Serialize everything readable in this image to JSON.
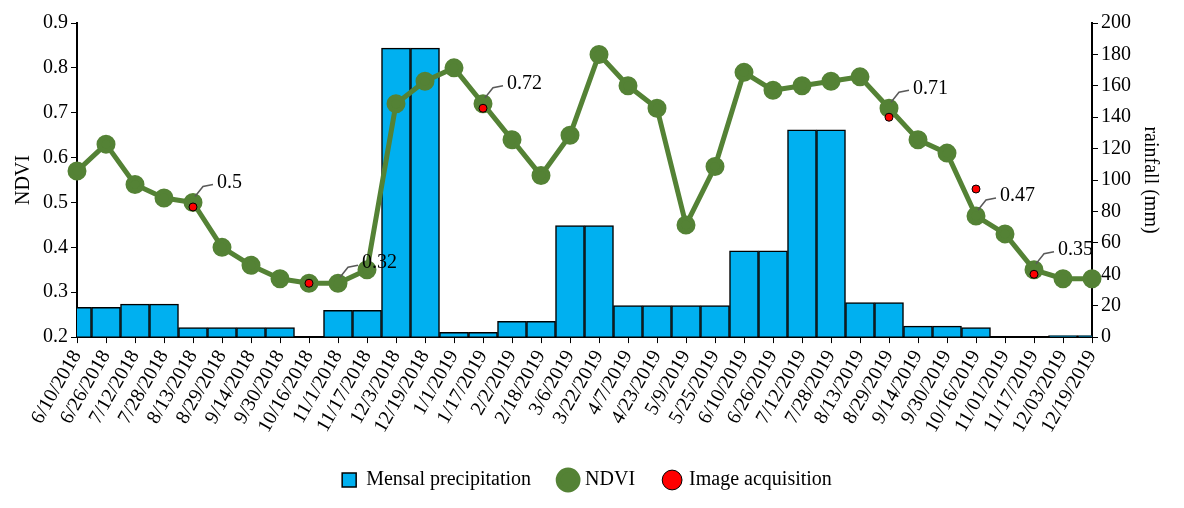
{
  "chart_data": {
    "type": "bar",
    "ylabel": "NDVI",
    "y2label": "rainfall (mm)",
    "categories": [
      "6/10/2018",
      "6/26/2018",
      "7/12/2018",
      "7/28/2018",
      "8/13/2018",
      "8/29/2018",
      "9/14/2018",
      "9/30/2018",
      "10/16/2018",
      "11/1/2018",
      "11/17/2018",
      "12/3/2018",
      "12/19/2018",
      "1/1/2019",
      "1/17/2019",
      "2/2/2019",
      "2/18/2019",
      "3/6/2019",
      "3/22/2019",
      "4/7/2019",
      "4/23/2019",
      "5/9/2019",
      "5/25/2019",
      "6/10/2019",
      "6/26/2019",
      "7/12/2019",
      "7/28/2019",
      "8/13/2019",
      "8/29/2019",
      "9/14/2019",
      "9/30/2019",
      "10/16/2019",
      "11/01/2019",
      "11/17/2019",
      "12/03/2019",
      "12/19/2019"
    ],
    "series": [
      {
        "name": "Mensal precipitation",
        "axis": "y2",
        "color": "#00b0f0",
        "values": [
          19,
          19,
          21,
          21,
          6,
          6,
          6,
          6,
          0,
          17,
          17,
          184,
          184,
          3,
          3,
          10,
          10,
          71,
          71,
          20,
          20,
          20,
          20,
          55,
          55,
          132,
          132,
          22,
          22,
          7,
          7,
          6,
          0,
          0,
          1,
          1
        ]
      },
      {
        "name": "NDVI",
        "type": "line",
        "color": "#548235",
        "marker": "circle",
        "values": [
          0.57,
          0.63,
          0.54,
          0.51,
          0.5,
          0.4,
          0.36,
          0.33,
          0.32,
          0.32,
          0.35,
          0.72,
          0.77,
          0.8,
          0.72,
          0.64,
          0.56,
          0.65,
          0.83,
          0.76,
          0.71,
          0.45,
          0.58,
          0.79,
          0.75,
          0.76,
          0.77,
          0.78,
          0.71,
          0.64,
          0.61,
          0.47,
          0.43,
          0.35,
          0.33,
          0.33
        ]
      },
      {
        "name": "Image acquisition",
        "type": "scatter",
        "color": "#ff0000",
        "marker": "circle",
        "x": [
          "8/13/2018",
          "10/16/2018",
          "1/17/2019",
          "8/29/2019",
          "10/16/2019",
          "11/17/2019"
        ],
        "values": [
          0.49,
          0.32,
          0.71,
          0.69,
          0.53,
          0.34
        ]
      }
    ],
    "ylim": [
      0.2,
      0.9
    ],
    "yticks": [
      0.2,
      0.3,
      0.4,
      0.5,
      0.6,
      0.7,
      0.8,
      0.9
    ],
    "y2lim": [
      0,
      200
    ],
    "y2ticks": [
      0,
      20,
      40,
      60,
      80,
      100,
      120,
      140,
      160,
      180,
      200
    ],
    "annotations": [
      {
        "text": "0.5",
        "x": "8/13/2018",
        "y": 0.5
      },
      {
        "text": "0.32",
        "x": "11/1/2018",
        "y": 0.32
      },
      {
        "text": "0.72",
        "x": "1/17/2019",
        "y": 0.72
      },
      {
        "text": "0.71",
        "x": "8/29/2019",
        "y": 0.71
      },
      {
        "text": "0.47",
        "x": "10/16/2019",
        "y": 0.47
      },
      {
        "text": "0.35",
        "x": "11/17/2019",
        "y": 0.35
      }
    ],
    "grid": false,
    "legend": "bottom"
  }
}
